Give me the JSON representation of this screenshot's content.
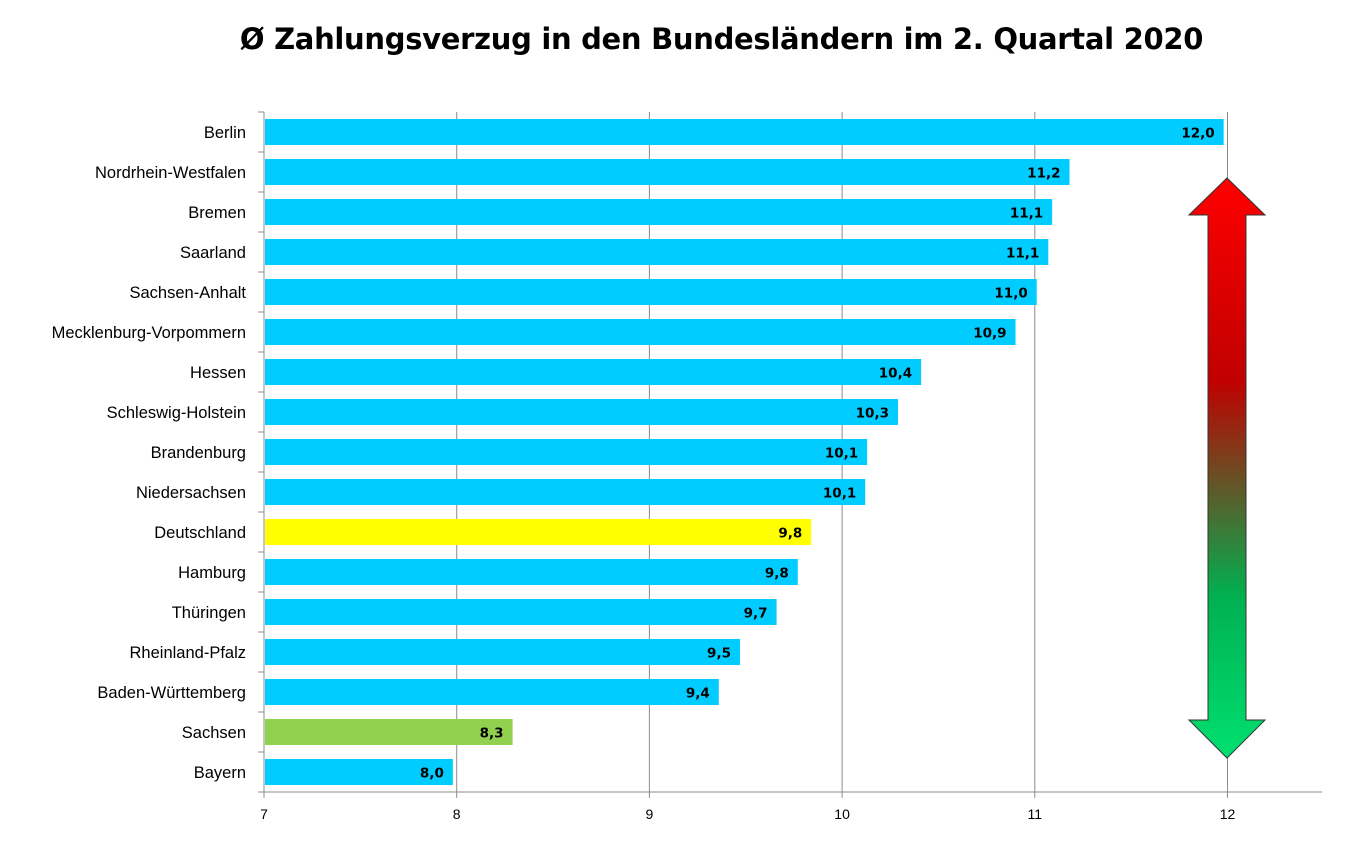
{
  "chart_data": {
    "type": "bar",
    "orientation": "horizontal",
    "title": "Ø Zahlungsverzug in den Bundesländern im 2. Quartal 2020",
    "xlabel": "",
    "ylabel": "",
    "xlim": [
      7,
      12.5
    ],
    "x_ticks": [
      7,
      8,
      9,
      10,
      11,
      12
    ],
    "grid": true,
    "categories": [
      "Berlin",
      "Nordrhein-Westfalen",
      "Bremen",
      "Saarland",
      "Sachsen-Anhalt",
      "Mecklenburg-Vorpommern",
      "Hessen",
      "Schleswig-Holstein",
      "Brandenburg",
      "Niedersachsen",
      "Deutschland",
      "Hamburg",
      "Thüringen",
      "Rheinland-Pfalz",
      "Baden-Württemberg",
      "Sachsen",
      "Bayern"
    ],
    "values": [
      11.98,
      11.18,
      11.09,
      11.07,
      11.01,
      10.9,
      10.41,
      10.29,
      10.13,
      10.12,
      9.84,
      9.77,
      9.66,
      9.47,
      9.36,
      8.29,
      7.98
    ],
    "value_labels": [
      "12,0",
      "11,2",
      "11,1",
      "11,1",
      "11,0",
      "10,9",
      "10,4",
      "10,3",
      "10,1",
      "10,1",
      "9,8",
      "9,8",
      "9,7",
      "9,5",
      "9,4",
      "8,3",
      "8,0"
    ],
    "bar_colors": [
      "#00ccff",
      "#00ccff",
      "#00ccff",
      "#00ccff",
      "#00ccff",
      "#00ccff",
      "#00ccff",
      "#00ccff",
      "#00ccff",
      "#00ccff",
      "#ffff00",
      "#00ccff",
      "#00ccff",
      "#00ccff",
      "#00ccff",
      "#92d050",
      "#00ccff"
    ],
    "default_color": "#00ccff",
    "highlight_colors": {
      "Deutschland": "#ffff00",
      "Sachsen": "#92d050"
    },
    "arrow": {
      "type": "double-arrow",
      "gradient": [
        "#ff0000",
        "#c00000",
        "#00b050",
        "#00e070"
      ]
    }
  }
}
